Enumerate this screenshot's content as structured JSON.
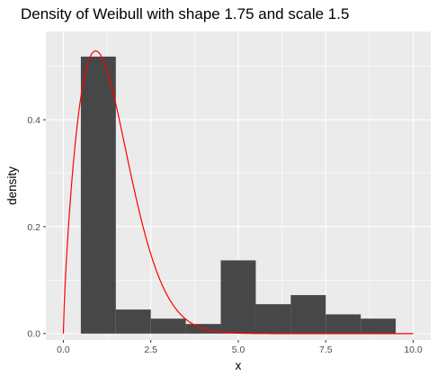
{
  "chart_data": {
    "type": "bar",
    "title": "Density of Weibull with shape 1.75 and scale 1.5",
    "xlabel": "x",
    "ylabel": "density",
    "xlim": [
      -0.5,
      10.5
    ],
    "ylim": [
      -0.012,
      0.565
    ],
    "x_ticks": [
      0,
      2.5,
      5,
      7.5,
      10
    ],
    "x_tick_labels": [
      "0.0",
      "2.5",
      "5.0",
      "7.5",
      "10.0"
    ],
    "y_ticks": [
      0,
      0.2,
      0.4
    ],
    "y_tick_labels": [
      "0.0",
      "0.2",
      "0.4"
    ],
    "grid": true,
    "panel_background": "#ebebeb",
    "histogram": {
      "bin_width": 1,
      "bin_centers": [
        1,
        2,
        3,
        4,
        5,
        6,
        7,
        8,
        9
      ],
      "values": [
        0.518,
        0.045,
        0.028,
        0.018,
        0.137,
        0.055,
        0.072,
        0.036,
        0.028
      ],
      "fill": "#474747"
    },
    "density_curve": {
      "distribution": "weibull",
      "shape": 1.75,
      "scale": 1.5,
      "x_range": [
        0,
        10
      ],
      "color": "#ff0000"
    }
  }
}
